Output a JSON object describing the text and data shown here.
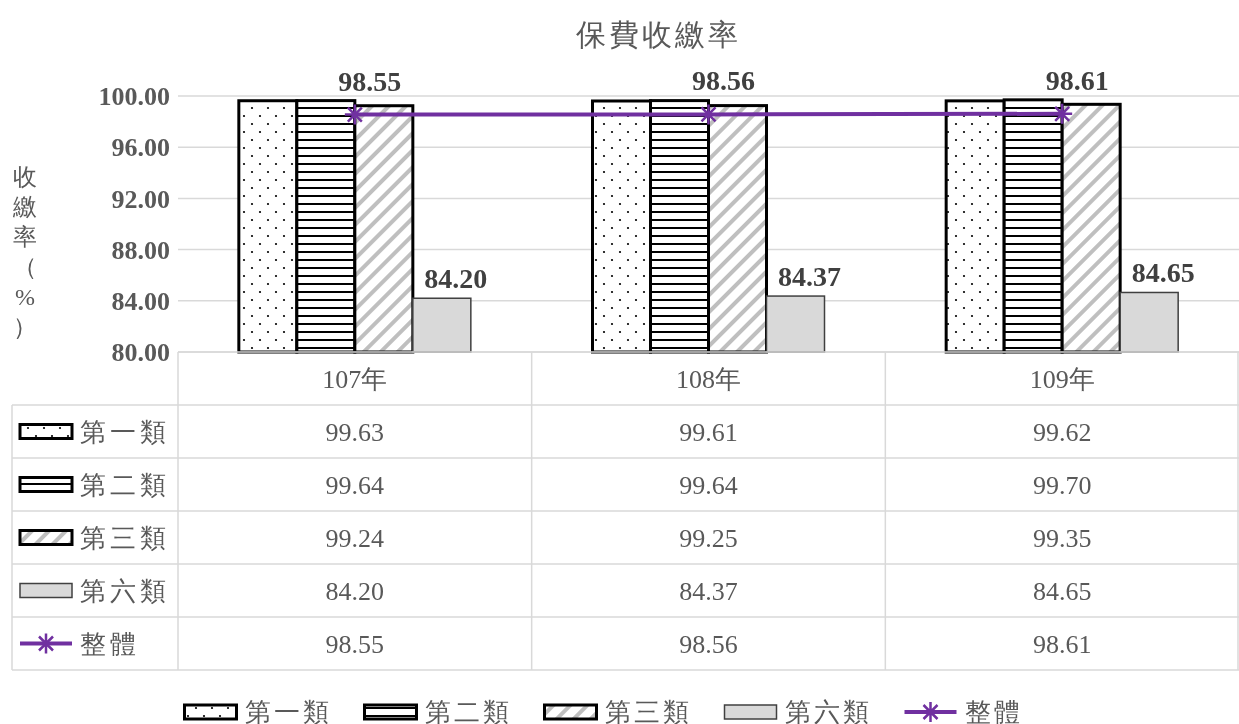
{
  "chart_data": {
    "type": "bar",
    "title": "保費收繳率",
    "ylabel": "收繳率（%）",
    "categories": [
      "107年",
      "108年",
      "109年"
    ],
    "series": [
      {
        "name": "第一類",
        "color": "#000000",
        "values": [
          99.63,
          99.61,
          99.62
        ],
        "value_labels": [
          "99.63",
          "99.61",
          "99.62"
        ]
      },
      {
        "name": "第二類",
        "color": "#000000",
        "values": [
          99.64,
          99.64,
          99.7
        ],
        "value_labels": [
          "99.64",
          "99.64",
          "99.70"
        ]
      },
      {
        "name": "第三類",
        "color": "#000000",
        "values": [
          99.24,
          99.25,
          99.35
        ],
        "value_labels": [
          "99.24",
          "99.25",
          "99.35"
        ]
      },
      {
        "name": "第六類",
        "color": "#404040",
        "values": [
          84.2,
          84.37,
          84.65
        ],
        "value_labels": [
          "84.20",
          "84.37",
          "84.65"
        ],
        "data_labels": true
      },
      {
        "name": "整體",
        "type": "line",
        "color": "#7030a0",
        "marker": "cross",
        "values": [
          98.55,
          98.56,
          98.61
        ],
        "value_labels": [
          "98.55",
          "98.56",
          "98.61"
        ],
        "data_labels": true
      }
    ],
    "ylim": [
      80,
      100
    ],
    "yticks": [
      {
        "value": 80,
        "label": "80.00"
      },
      {
        "value": 84,
        "label": "84.00"
      },
      {
        "value": 88,
        "label": "88.00"
      },
      {
        "value": 92,
        "label": "92.00"
      },
      {
        "value": 96,
        "label": "96.00"
      },
      {
        "value": 100,
        "label": "100.00"
      }
    ],
    "grid": "y",
    "legend": "bottom"
  }
}
